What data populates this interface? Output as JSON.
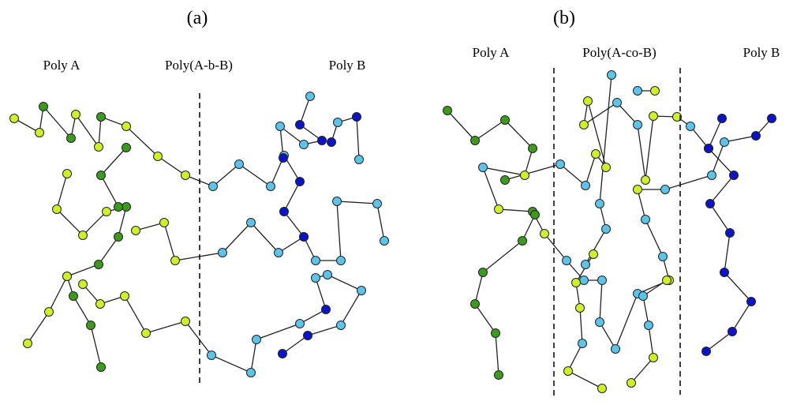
{
  "panels": [
    {
      "label": "(a)",
      "regions": [
        "Poly A",
        "Poly(A-b-B)",
        "Poly B"
      ]
    },
    {
      "label": "(b)",
      "regions": [
        "Poly A",
        "Poly(A-co-B)",
        "Poly B"
      ]
    }
  ]
}
